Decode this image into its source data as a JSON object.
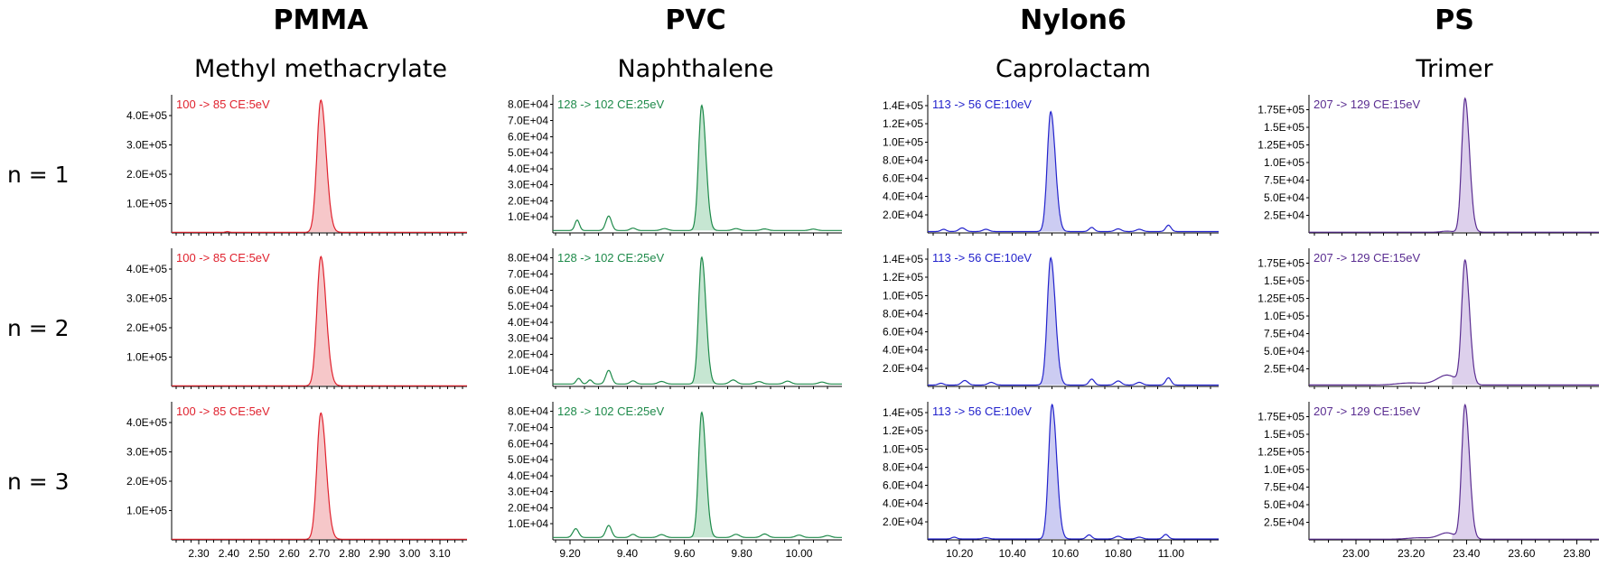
{
  "chart_data": {
    "type": "line",
    "title": "",
    "row_labels": [
      "n = 1",
      "n = 2",
      "n = 3"
    ],
    "panels": [
      {
        "polymer": "PMMA",
        "compound": "Methyl methacrylate",
        "color": "#e0222e",
        "fill": "#f6c7c9",
        "transition": "100 -> 85 CE:5eV",
        "xlim": [
          2.21,
          3.19
        ],
        "ylim": [
          0,
          470000
        ],
        "xticks": [
          "2.30",
          "2.40",
          "2.50",
          "2.60",
          "2.70",
          "2.80",
          "2.90",
          "3.00",
          "3.10"
        ],
        "yticks": [
          "1.0E+05",
          "2.0E+05",
          "3.0E+05",
          "4.0E+05"
        ],
        "ytick_values": [
          100000,
          200000,
          300000,
          400000
        ],
        "rows": [
          {
            "peak_rt": 2.705,
            "peak_height": 450000,
            "peak_width": 0.013,
            "baseline": 2000,
            "bumps": [
              [
                2.395,
                2500,
                0.006
              ]
            ]
          },
          {
            "peak_rt": 2.705,
            "peak_height": 440000,
            "peak_width": 0.013,
            "baseline": 2000,
            "bumps": []
          },
          {
            "peak_rt": 2.705,
            "peak_height": 430000,
            "peak_width": 0.013,
            "baseline": 2000,
            "bumps": []
          }
        ]
      },
      {
        "polymer": "PVC",
        "compound": "Naphthalene",
        "color": "#1e8a4a",
        "fill": "#c6e6d2",
        "transition": "128 -> 102 CE:25eV",
        "xlim": [
          9.14,
          10.15
        ],
        "ylim": [
          0,
          86000
        ],
        "xticks": [
          "9.20",
          "9.40",
          "9.60",
          "9.80",
          "10.00"
        ],
        "yticks": [
          "1.0E+04",
          "2.0E+04",
          "3.0E+04",
          "4.0E+04",
          "5.0E+04",
          "6.0E+04",
          "7.0E+04",
          "8.0E+04"
        ],
        "ytick_values": [
          10000,
          20000,
          30000,
          40000,
          50000,
          60000,
          70000,
          80000
        ],
        "rows": [
          {
            "peak_rt": 9.66,
            "peak_height": 78000,
            "peak_width": 0.011,
            "baseline": 1500,
            "bumps": [
              [
                9.225,
                6500,
                0.008
              ],
              [
                9.335,
                9000,
                0.01
              ],
              [
                9.42,
                1500,
                0.01
              ],
              [
                9.53,
                1200,
                0.012
              ],
              [
                9.78,
                1200,
                0.012
              ],
              [
                9.88,
                1000,
                0.012
              ],
              [
                10.05,
                900,
                0.012
              ]
            ]
          },
          {
            "peak_rt": 9.66,
            "peak_height": 79000,
            "peak_width": 0.011,
            "baseline": 1500,
            "bumps": [
              [
                9.23,
                3500,
                0.008
              ],
              [
                9.27,
                2500,
                0.008
              ],
              [
                9.335,
                8500,
                0.01
              ],
              [
                9.42,
                2000,
                0.01
              ],
              [
                9.52,
                1600,
                0.012
              ],
              [
                9.77,
                2500,
                0.012
              ],
              [
                9.86,
                1500,
                0.012
              ],
              [
                9.96,
                1800,
                0.012
              ],
              [
                10.08,
                1200,
                0.012
              ]
            ]
          },
          {
            "peak_rt": 9.66,
            "peak_height": 78000,
            "peak_width": 0.011,
            "baseline": 1500,
            "bumps": [
              [
                9.22,
                5500,
                0.01
              ],
              [
                9.335,
                7500,
                0.01
              ],
              [
                9.42,
                2000,
                0.01
              ],
              [
                9.52,
                1800,
                0.012
              ],
              [
                9.78,
                2000,
                0.012
              ],
              [
                9.88,
                2200,
                0.012
              ],
              [
                10.0,
                1500,
                0.012
              ],
              [
                10.1,
                1200,
                0.012
              ]
            ]
          }
        ]
      },
      {
        "polymer": "Nylon6",
        "compound": "Caprolactam",
        "color": "#2222cc",
        "fill": "#ccccf2",
        "transition": "113 -> 56 CE:10eV",
        "xlim": [
          10.08,
          11.18
        ],
        "ylim": [
          0,
          152000
        ],
        "xticks": [
          "10.20",
          "10.40",
          "10.60",
          "10.80",
          "11.00"
        ],
        "yticks": [
          "2.0E+04",
          "4.0E+04",
          "6.0E+04",
          "8.0E+04",
          "1.0E+05",
          "1.2E+05",
          "1.4E+05"
        ],
        "ytick_values": [
          20000,
          40000,
          60000,
          80000,
          100000,
          120000,
          140000
        ],
        "rows": [
          {
            "peak_rt": 10.545,
            "peak_height": 132000,
            "peak_width": 0.013,
            "baseline": 1500,
            "bumps": [
              [
                10.14,
                2500,
                0.01
              ],
              [
                10.21,
                4000,
                0.012
              ],
              [
                10.3,
                2500,
                0.012
              ],
              [
                10.7,
                4500,
                0.01
              ],
              [
                10.8,
                3000,
                0.012
              ],
              [
                10.88,
                2500,
                0.012
              ],
              [
                10.99,
                7000,
                0.01
              ]
            ]
          },
          {
            "peak_rt": 10.545,
            "peak_height": 140000,
            "peak_width": 0.013,
            "baseline": 1500,
            "bumps": [
              [
                10.13,
                2000,
                0.01
              ],
              [
                10.22,
                5000,
                0.012
              ],
              [
                10.32,
                3000,
                0.012
              ],
              [
                10.7,
                6500,
                0.01
              ],
              [
                10.8,
                4500,
                0.012
              ],
              [
                10.88,
                3000,
                0.012
              ],
              [
                10.99,
                8000,
                0.01
              ]
            ]
          },
          {
            "peak_rt": 10.55,
            "peak_height": 148000,
            "peak_width": 0.013,
            "baseline": 1000,
            "bumps": [
              [
                10.18,
                2000,
                0.01
              ],
              [
                10.3,
                1500,
                0.012
              ],
              [
                10.69,
                4500,
                0.01
              ],
              [
                10.8,
                3000,
                0.012
              ],
              [
                10.88,
                2000,
                0.012
              ],
              [
                10.98,
                5000,
                0.01
              ]
            ]
          }
        ]
      },
      {
        "polymer": "PS",
        "compound": "Trimer",
        "color": "#5a2d91",
        "fill": "#ddd0ec",
        "transition": "207 -> 129 CE:15eV",
        "xlim": [
          22.83,
          23.88
        ],
        "ylim": [
          0,
          196000
        ],
        "xticks": [
          "23.00",
          "23.20",
          "23.40",
          "23.60",
          "23.80"
        ],
        "yticks": [
          "2.5E+04",
          "5.0E+04",
          "7.5E+04",
          "1.0E+05",
          "1.25E+05",
          "1.5E+05",
          "1.75E+05"
        ],
        "ytick_values": [
          25000,
          50000,
          75000,
          100000,
          125000,
          150000,
          175000
        ],
        "rows": [
          {
            "peak_rt": 23.395,
            "peak_height": 190000,
            "peak_width": 0.012,
            "baseline": 1000,
            "bumps": [
              [
                23.33,
                1500,
                0.02
              ]
            ]
          },
          {
            "peak_rt": 23.395,
            "peak_height": 175000,
            "peak_width": 0.012,
            "baseline": 2000,
            "bumps": [
              [
                23.33,
                14000,
                0.035
              ],
              [
                23.2,
                3000,
                0.05
              ]
            ]
          },
          {
            "peak_rt": 23.395,
            "peak_height": 190000,
            "peak_width": 0.012,
            "baseline": 1000,
            "bumps": [
              [
                23.33,
                9000,
                0.03
              ],
              [
                23.23,
                2000,
                0.04
              ]
            ]
          }
        ]
      }
    ]
  }
}
